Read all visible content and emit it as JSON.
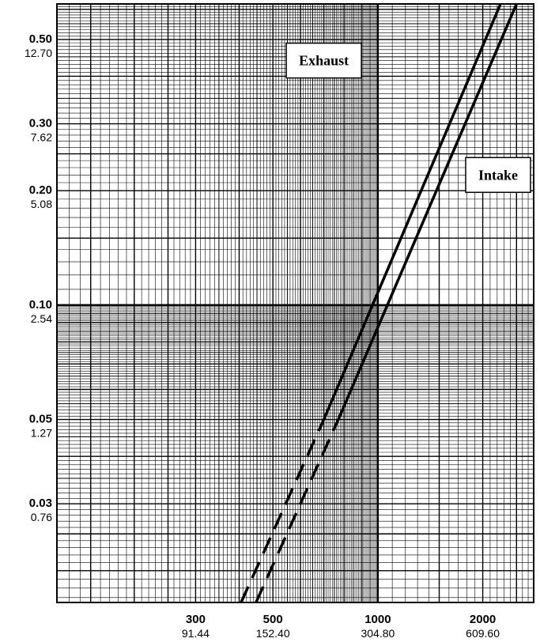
{
  "chart_data": {
    "type": "line",
    "title": "",
    "xlabel": "",
    "ylabel": "",
    "x_scale": "log",
    "y_scale": "log",
    "xlim": [
      120,
      2800
    ],
    "ylim": [
      0.0165,
      0.62
    ],
    "grid": true,
    "x_ticks": [
      {
        "value": 300,
        "label": "300",
        "sublabel": "91.44"
      },
      {
        "value": 500,
        "label": "500",
        "sublabel": "152.40"
      },
      {
        "value": 1000,
        "label": "1000",
        "sublabel": "304.80"
      },
      {
        "value": 2000,
        "label": "2000",
        "sublabel": "609.60"
      }
    ],
    "y_ticks": [
      {
        "value": 0.5,
        "label": "0.50",
        "sublabel": "12.70"
      },
      {
        "value": 0.3,
        "label": "0.30",
        "sublabel": "7.62"
      },
      {
        "value": 0.2,
        "label": "0.20",
        "sublabel": "5.08"
      },
      {
        "value": 0.1,
        "label": "0.10",
        "sublabel": "2.54"
      },
      {
        "value": 0.05,
        "label": "0.05",
        "sublabel": "1.27"
      },
      {
        "value": 0.03,
        "label": "0.03",
        "sublabel": "0.76"
      }
    ],
    "series": [
      {
        "name": "Exhaust",
        "color": "#000000",
        "solid": [
          [
            700,
            0.05
          ],
          [
            2250,
            0.62
          ]
        ],
        "dashed": [
          [
            405,
            0.0165
          ],
          [
            700,
            0.05
          ]
        ]
      },
      {
        "name": "Intake",
        "color": "#000000",
        "solid": [
          [
            770,
            0.05
          ],
          [
            2500,
            0.62
          ]
        ],
        "dashed": [
          [
            447,
            0.0165
          ],
          [
            770,
            0.05
          ]
        ]
      }
    ],
    "annotations": [
      {
        "text": "Exhaust",
        "anchor_x": 700,
        "anchor_y": 0.44
      },
      {
        "text": "Intake",
        "anchor_x": 2550,
        "anchor_y": 0.22
      }
    ]
  }
}
